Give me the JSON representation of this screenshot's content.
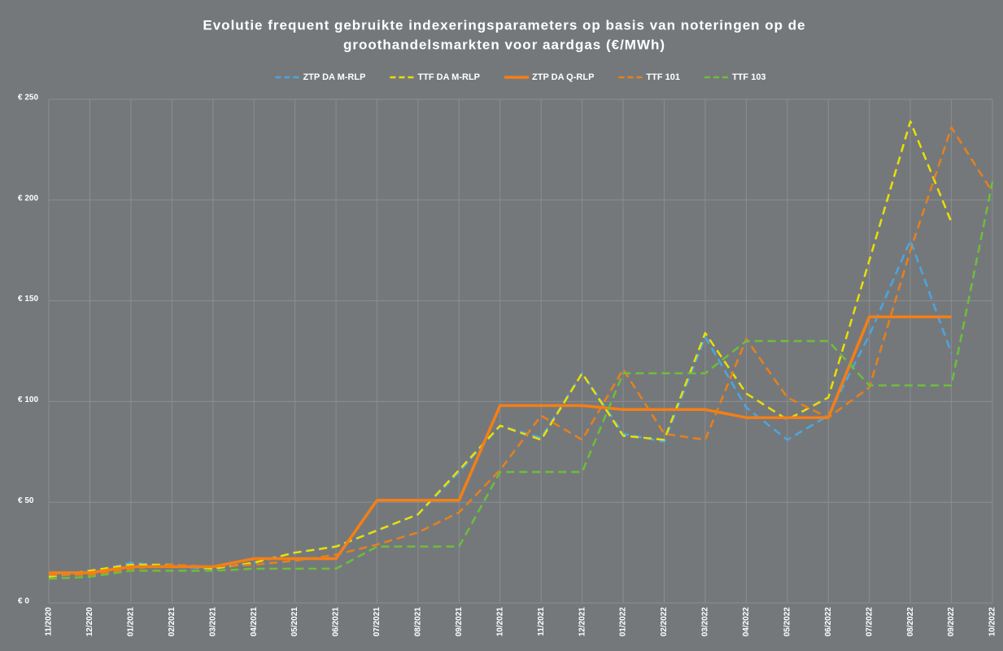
{
  "chart_data": {
    "type": "line",
    "title": [
      "Evolutie frequent gebruikte indexeringsparameters op basis van noteringen op de",
      "groothandelsmarkten voor aardgas (€/MWh)"
    ],
    "categories": [
      "11/2020",
      "12/2020",
      "01/2021",
      "02/2021",
      "03/2021",
      "04/2021",
      "05/2021",
      "06/2021",
      "07/2021",
      "08/2021",
      "09/2021",
      "10/2021",
      "11/2021",
      "12/2021",
      "01/2022",
      "02/2022",
      "03/2022",
      "04/2022",
      "05/2022",
      "06/2022",
      "07/2022",
      "08/2022",
      "09/2022",
      "10/2022"
    ],
    "series": [
      {
        "name": "ZTP DA M-RLP",
        "color": "#4aa6e0",
        "dashed": true,
        "values": [
          13,
          15,
          20,
          18,
          17,
          20,
          25,
          28,
          36,
          44,
          65,
          88,
          82,
          114,
          84,
          80,
          132,
          97,
          81,
          93,
          133,
          180,
          124,
          null
        ]
      },
      {
        "name": "TTF DA M-RLP",
        "color": "#e8e000",
        "dashed": true,
        "values": [
          13,
          16,
          19,
          19,
          17,
          20,
          25,
          28,
          36,
          44,
          66,
          88,
          81,
          114,
          83,
          81,
          134,
          104,
          91,
          102,
          170,
          239,
          189,
          null
        ]
      },
      {
        "name": "ZTP DA Q-RLP",
        "color": "#f47f16",
        "dashed": false,
        "values": [
          15,
          15,
          18,
          18,
          18,
          22,
          22,
          22,
          51,
          51,
          51,
          98,
          98,
          98,
          96,
          96,
          96,
          92,
          92,
          92,
          142,
          142,
          142,
          null
        ]
      },
      {
        "name": "TTF 101",
        "color": "#e8801a",
        "dashed": true,
        "values": [
          14,
          14,
          17,
          19,
          18,
          19,
          21,
          24,
          29,
          35,
          45,
          66,
          93,
          81,
          116,
          84,
          81,
          131,
          102,
          92,
          107,
          175,
          236,
          204
        ]
      },
      {
        "name": "TTF 103",
        "color": "#6bbf3a",
        "dashed": true,
        "values": [
          12,
          13,
          16,
          16,
          16,
          17,
          17,
          17,
          28,
          28,
          28,
          65,
          65,
          65,
          114,
          114,
          114,
          130,
          130,
          130,
          108,
          108,
          108,
          209
        ]
      }
    ],
    "ylim": [
      0,
      250
    ],
    "yticks": [
      {
        "value": 0,
        "label": "€ 0"
      },
      {
        "value": 50,
        "label": "€ 50"
      },
      {
        "value": 100,
        "label": "€ 100"
      },
      {
        "value": 150,
        "label": "€ 150"
      },
      {
        "value": 200,
        "label": "€ 200"
      },
      {
        "value": 250,
        "label": "€ 250"
      }
    ],
    "grid": true,
    "legend": "top"
  }
}
